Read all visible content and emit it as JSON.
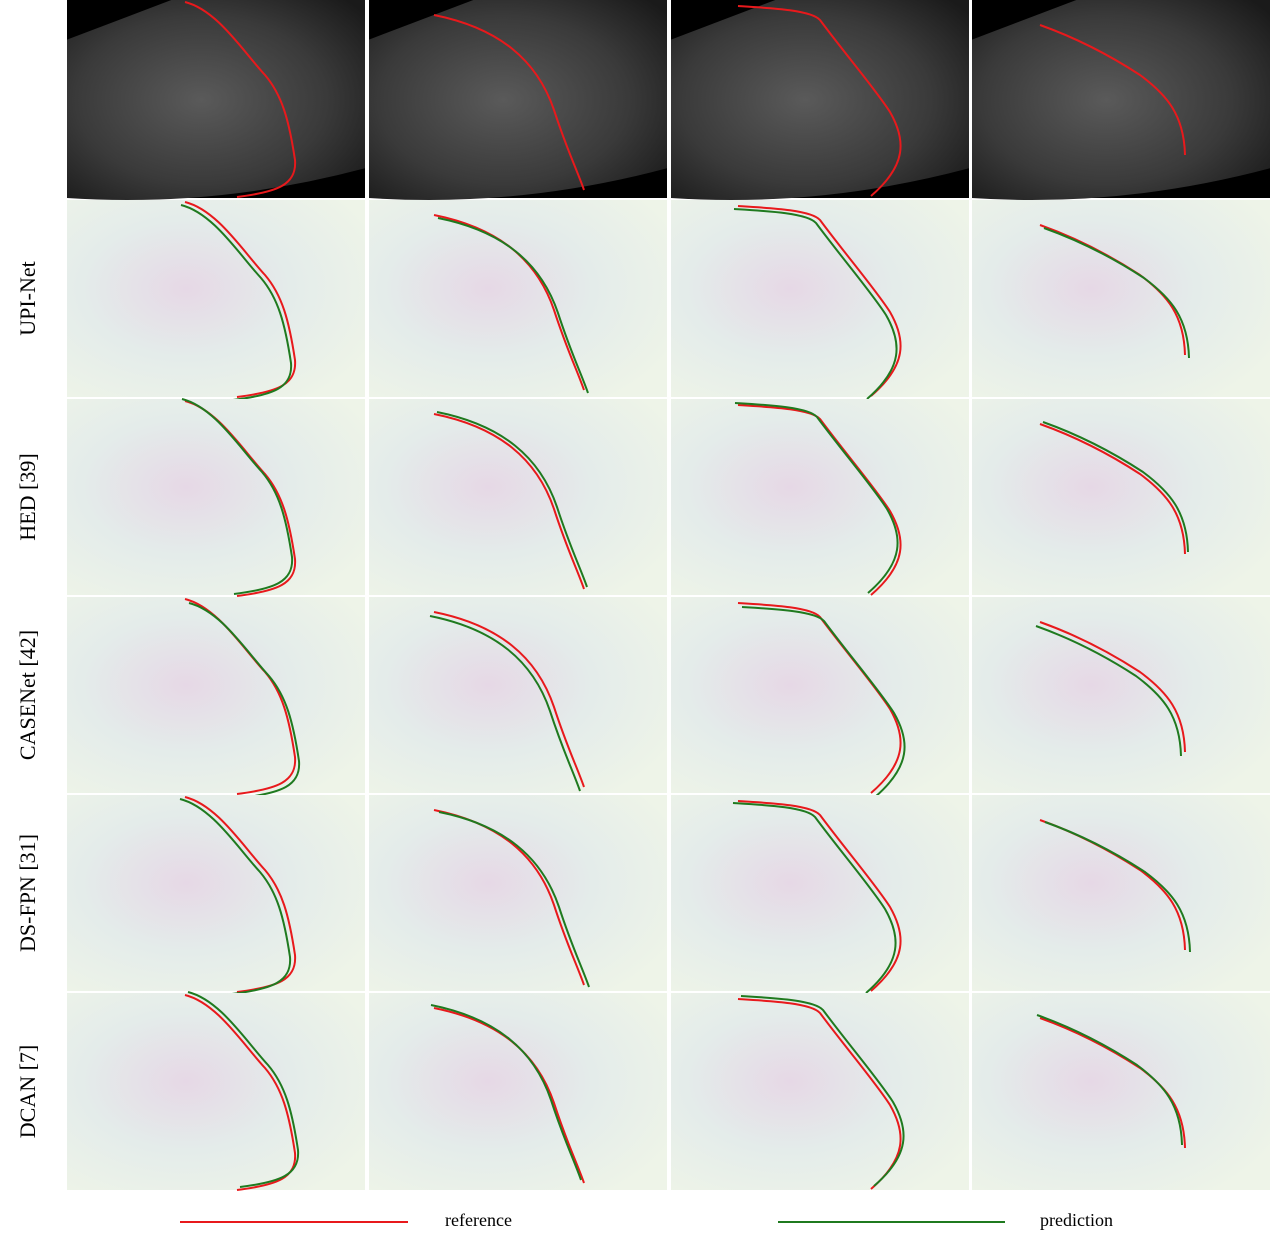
{
  "row_labels": [
    "UPI-Net",
    "HED [39]",
    "CASENet [42]",
    "DS-FPN [31]",
    "DCAN [7]"
  ],
  "legend": {
    "reference": "reference",
    "prediction": "prediction"
  }
}
